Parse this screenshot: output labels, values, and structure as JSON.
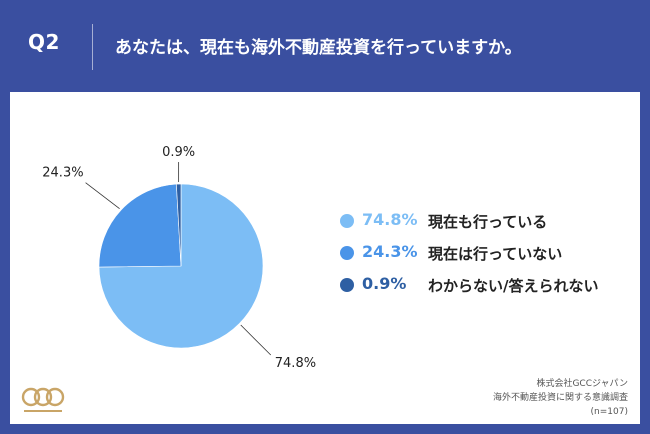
{
  "header": {
    "question_number": "Q2",
    "question_text": "あなたは、現在も海外不動産投資を行っていますか。"
  },
  "chart_data": {
    "type": "pie",
    "slices": [
      {
        "label": "現在も行っている",
        "value": 74.8,
        "display": "74.8%",
        "color": "#7cbdf5"
      },
      {
        "label": "現在は行っていない",
        "value": 24.3,
        "display": "24.3%",
        "color": "#4a94e8"
      },
      {
        "label": "わからない/答えられない",
        "value": 0.9,
        "display": "0.9%",
        "color": "#2e5fa3"
      }
    ],
    "legend_placement": "right"
  },
  "footer": {
    "company": "株式会社GCCジャパン",
    "survey": "海外不動産投資に関する意識調査",
    "sample": "(n=107)"
  },
  "logo": {
    "text": "GCC",
    "color": "#c9a567"
  }
}
